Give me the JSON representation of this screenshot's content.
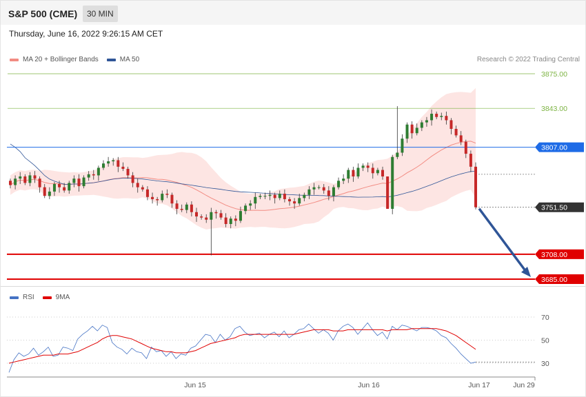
{
  "header": {
    "title": "S&P 500 (CME)",
    "interval": "30 MIN"
  },
  "datetime": "Thursday, June 16, 2022 9:26:15 AM CET",
  "copyright": "Research © 2022 Trading Central",
  "legend_main": [
    {
      "label": "MA 20 + Bollinger Bands",
      "color": "#f28b82"
    },
    {
      "label": "MA 50",
      "color": "#2f5597"
    }
  ],
  "legend_rsi": [
    {
      "label": "RSI",
      "color": "#4472c4"
    },
    {
      "label": "9MA",
      "color": "#e00000"
    }
  ],
  "chart_data": [
    {
      "type": "candlestick",
      "ylim": [
        3685,
        3875
      ],
      "levels": [
        {
          "value": 3875.0,
          "label": "3875.00",
          "color": "#7cb342",
          "style": "thin"
        },
        {
          "value": 3843.0,
          "label": "3843.00",
          "color": "#7cb342",
          "style": "thin"
        },
        {
          "value": 3807.0,
          "label": "3807.00",
          "color": "#1e6be6",
          "style": "solid"
        },
        {
          "value": 3751.5,
          "label": "3751.50",
          "color": "#333333",
          "style": "dotted"
        },
        {
          "value": 3708.0,
          "label": "3708.00",
          "color": "#e00000",
          "style": "thick"
        },
        {
          "value": 3685.0,
          "label": "3685.00",
          "color": "#e00000",
          "style": "thick"
        }
      ],
      "ma50_last": 3782,
      "projection": {
        "from": 3751.5,
        "to": 3685.0
      },
      "candles_close": [
        3772,
        3778,
        3780,
        3774,
        3781,
        3778,
        3770,
        3762,
        3766,
        3773,
        3770,
        3767,
        3774,
        3778,
        3771,
        3779,
        3782,
        3781,
        3788,
        3792,
        3794,
        3795,
        3789,
        3787,
        3781,
        3774,
        3770,
        3768,
        3761,
        3759,
        3758,
        3764,
        3763,
        3755,
        3750,
        3749,
        3754,
        3747,
        3743,
        3742,
        3740,
        3747,
        3746,
        3742,
        3736,
        3741,
        3739,
        3748,
        3753,
        3755,
        3761,
        3762,
        3762,
        3763,
        3760,
        3764,
        3759,
        3757,
        3755,
        3760,
        3763,
        3768,
        3770,
        3770,
        3767,
        3762,
        3770,
        3776,
        3778,
        3786,
        3780,
        3788,
        3790,
        3788,
        3783,
        3786,
        3780,
        3750,
        3798,
        3802,
        3815,
        3828,
        3820,
        3825,
        3830,
        3832,
        3838,
        3835,
        3836,
        3832,
        3824,
        3818,
        3812,
        3801,
        3789,
        3751.5
      ],
      "xlabels": [
        "Jun 15",
        "Jun 16",
        "Jun 17",
        "Jun 29"
      ]
    },
    {
      "type": "line",
      "name": "RSI",
      "ylim": [
        20,
        80
      ],
      "yticks": [
        30,
        50,
        70
      ],
      "yticklabels": [
        "30",
        "50",
        "70"
      ],
      "series": [
        {
          "name": "RSI",
          "values": [
            22,
            33,
            39,
            36,
            38,
            43,
            37,
            40,
            44,
            36,
            37,
            44,
            43,
            41,
            51,
            55,
            58,
            62,
            58,
            63,
            61,
            48,
            44,
            42,
            38,
            43,
            40,
            39,
            34,
            44,
            40,
            41,
            36,
            40,
            34,
            38,
            37,
            43,
            45,
            50,
            55,
            54,
            48,
            55,
            50,
            53,
            60,
            62,
            57,
            54,
            55,
            56,
            52,
            55,
            57,
            53,
            58,
            52,
            55,
            59,
            60,
            64,
            60,
            56,
            59,
            56,
            50,
            58,
            62,
            64,
            61,
            55,
            60,
            65,
            59,
            54,
            57,
            51,
            62,
            59,
            63,
            62,
            60,
            58,
            61,
            61,
            60,
            58,
            54,
            52,
            47,
            43,
            38,
            34,
            30,
            31
          ]
        },
        {
          "name": "9MA",
          "values": [
            30,
            31,
            32,
            33,
            34,
            35,
            36,
            37,
            37,
            37,
            38,
            38,
            38,
            39,
            40,
            42,
            44,
            46,
            48,
            51,
            53,
            54,
            54,
            53,
            52,
            51,
            49,
            47,
            45,
            43,
            42,
            41,
            40,
            40,
            39,
            39,
            39,
            40,
            41,
            43,
            45,
            47,
            48,
            49,
            50,
            51,
            52,
            54,
            55,
            55,
            55,
            55,
            55,
            55,
            55,
            55,
            55,
            55,
            55,
            56,
            57,
            58,
            59,
            59,
            59,
            59,
            58,
            58,
            58,
            59,
            59,
            59,
            59,
            59,
            59,
            59,
            59,
            58,
            59,
            59,
            59,
            59,
            60,
            60,
            60,
            60,
            60,
            60,
            59,
            58,
            56,
            54,
            51,
            48,
            45,
            42
          ]
        }
      ],
      "yaxis": "right"
    }
  ]
}
